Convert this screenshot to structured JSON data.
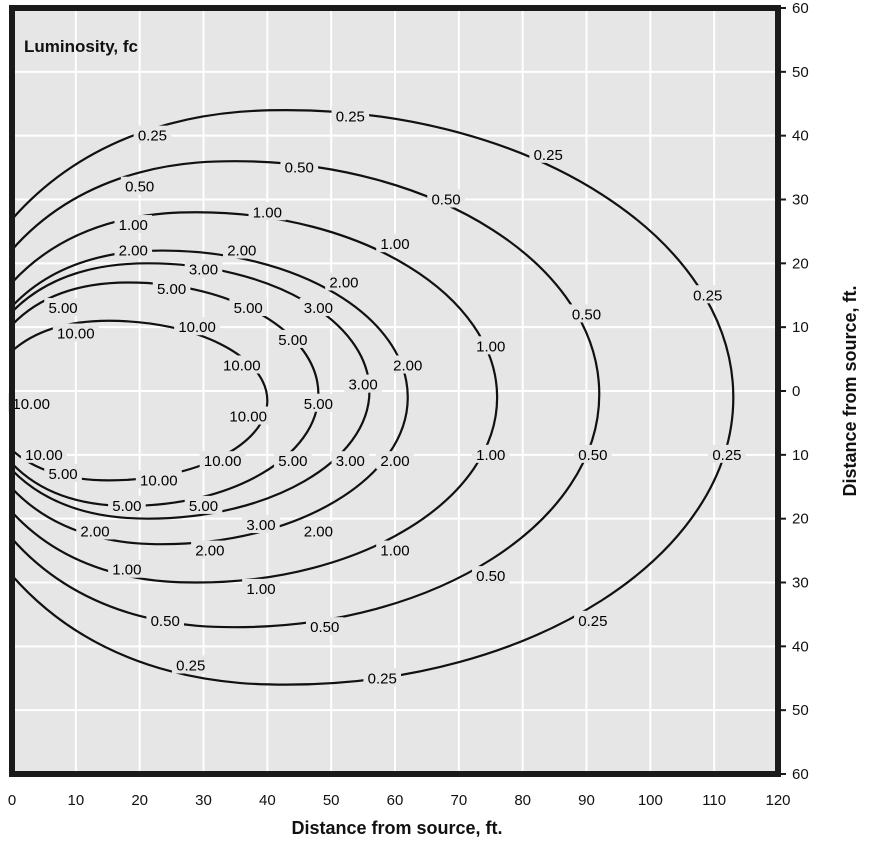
{
  "chart_data": {
    "type": "contour",
    "title": "Luminosity, fc",
    "xlabel": "Distance from source, ft.",
    "ylabel": "Distance from source, ft.",
    "xlim": [
      0,
      120
    ],
    "ylim": [
      -60,
      60
    ],
    "grid": true,
    "x_ticks": [
      "0",
      "10",
      "20",
      "30",
      "40",
      "50",
      "60",
      "70",
      "80",
      "90",
      "100",
      "110",
      "120"
    ],
    "y_ticks": [
      "60",
      "50",
      "40",
      "30",
      "20",
      "10",
      "0",
      "10",
      "20",
      "30",
      "40",
      "50",
      "60"
    ],
    "contours": [
      {
        "level": "0.25",
        "x_max": 113,
        "y_top": 44,
        "y_bottom": -46
      },
      {
        "level": "0.50",
        "x_max": 92,
        "y_top": 36,
        "y_bottom": -37
      },
      {
        "level": "1.00",
        "x_max": 76,
        "y_top": 28,
        "y_bottom": -30
      },
      {
        "level": "2.00",
        "x_max": 62,
        "y_top": 22,
        "y_bottom": -24
      },
      {
        "level": "3.00",
        "x_max": 56,
        "y_top": 20,
        "y_bottom": -20
      },
      {
        "level": "5.00",
        "x_max": 48,
        "y_top": 17,
        "y_bottom": -18
      },
      {
        "level": "10.00",
        "x_max": 40,
        "y_top": 11,
        "y_bottom": -14
      }
    ],
    "labels": [
      {
        "text": "0.25",
        "x": 22,
        "y": 40
      },
      {
        "text": "0.25",
        "x": 53,
        "y": 43
      },
      {
        "text": "0.25",
        "x": 84,
        "y": 37
      },
      {
        "text": "0.25",
        "x": 109,
        "y": 15
      },
      {
        "text": "0.25",
        "x": 112,
        "y": -10
      },
      {
        "text": "0.25",
        "x": 91,
        "y": -36
      },
      {
        "text": "0.25",
        "x": 58,
        "y": -45
      },
      {
        "text": "0.25",
        "x": 28,
        "y": -43
      },
      {
        "text": "0.50",
        "x": 20,
        "y": 32
      },
      {
        "text": "0.50",
        "x": 45,
        "y": 35
      },
      {
        "text": "0.50",
        "x": 68,
        "y": 30
      },
      {
        "text": "0.50",
        "x": 90,
        "y": 12
      },
      {
        "text": "0.50",
        "x": 91,
        "y": -10
      },
      {
        "text": "0.50",
        "x": 75,
        "y": -29
      },
      {
        "text": "0.50",
        "x": 49,
        "y": -37
      },
      {
        "text": "0.50",
        "x": 24,
        "y": -36
      },
      {
        "text": "1.00",
        "x": 19,
        "y": 26
      },
      {
        "text": "1.00",
        "x": 40,
        "y": 28
      },
      {
        "text": "1.00",
        "x": 60,
        "y": 23
      },
      {
        "text": "1.00",
        "x": 75,
        "y": 7
      },
      {
        "text": "1.00",
        "x": 75,
        "y": -10
      },
      {
        "text": "1.00",
        "x": 60,
        "y": -25
      },
      {
        "text": "1.00",
        "x": 39,
        "y": -31
      },
      {
        "text": "1.00",
        "x": 18,
        "y": -28
      },
      {
        "text": "2.00",
        "x": 19,
        "y": 22
      },
      {
        "text": "2.00",
        "x": 36,
        "y": 22
      },
      {
        "text": "2.00",
        "x": 52,
        "y": 17
      },
      {
        "text": "2.00",
        "x": 62,
        "y": 4
      },
      {
        "text": "2.00",
        "x": 60,
        "y": -11
      },
      {
        "text": "2.00",
        "x": 48,
        "y": -22
      },
      {
        "text": "2.00",
        "x": 31,
        "y": -25
      },
      {
        "text": "2.00",
        "x": 13,
        "y": -22
      },
      {
        "text": "3.00",
        "x": 30,
        "y": 19
      },
      {
        "text": "3.00",
        "x": 48,
        "y": 13
      },
      {
        "text": "3.00",
        "x": 55,
        "y": 1
      },
      {
        "text": "3.00",
        "x": 53,
        "y": -11
      },
      {
        "text": "3.00",
        "x": 39,
        "y": -21
      },
      {
        "text": "5.00",
        "x": 25,
        "y": 16
      },
      {
        "text": "5.00",
        "x": 37,
        "y": 13
      },
      {
        "text": "5.00",
        "x": 44,
        "y": 8
      },
      {
        "text": "5.00",
        "x": 48,
        "y": -2
      },
      {
        "text": "5.00",
        "x": 44,
        "y": -11
      },
      {
        "text": "5.00",
        "x": 30,
        "y": -18
      },
      {
        "text": "5.00",
        "x": 18,
        "y": -18
      },
      {
        "text": "5.00",
        "x": 8,
        "y": 13
      },
      {
        "text": "5.00",
        "x": 8,
        "y": -13
      },
      {
        "text": "10.00",
        "x": 29,
        "y": 10
      },
      {
        "text": "10.00",
        "x": 36,
        "y": 4
      },
      {
        "text": "10.00",
        "x": 37,
        "y": -4
      },
      {
        "text": "10.00",
        "x": 33,
        "y": -11
      },
      {
        "text": "10.00",
        "x": 23,
        "y": -14
      },
      {
        "text": "10.00",
        "x": 10,
        "y": 9
      },
      {
        "text": "10.00",
        "x": 5,
        "y": -10
      },
      {
        "text": "10.00",
        "x": 3,
        "y": -2
      }
    ]
  }
}
